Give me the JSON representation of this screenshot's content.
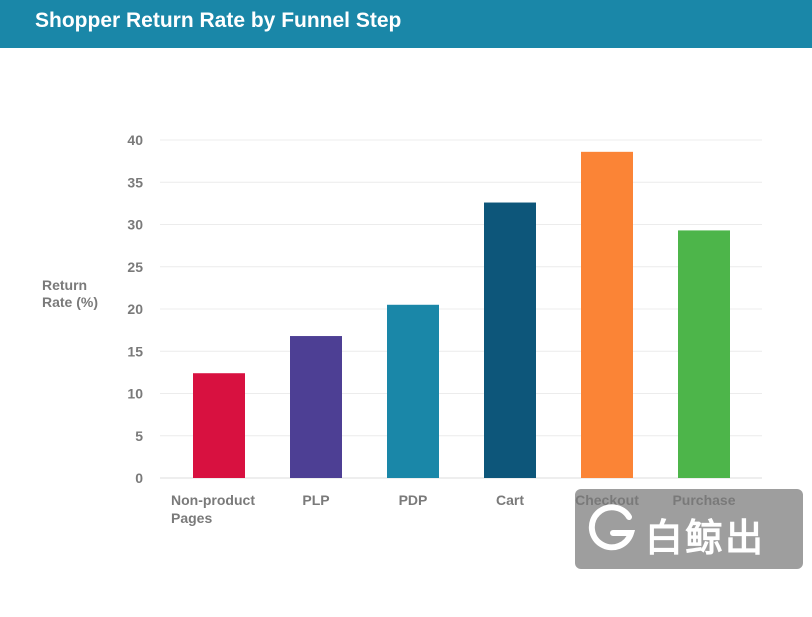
{
  "title": "Shopper Return Rate by Funnel Step",
  "chart_data": {
    "type": "bar",
    "title": "Shopper Return Rate by Funnel Step",
    "ylabel": [
      "Return",
      "Rate (%)"
    ],
    "xlabel": "",
    "ylim": [
      0,
      40
    ],
    "yticks": [
      0,
      5,
      10,
      15,
      20,
      25,
      30,
      35,
      40
    ],
    "grid": true,
    "categories": [
      [
        "Non-product",
        "Pages"
      ],
      [
        "PLP"
      ],
      [
        "PDP"
      ],
      [
        "Cart"
      ],
      [
        "Checkout"
      ],
      [
        "Purchase"
      ]
    ],
    "values": [
      12.4,
      16.8,
      20.5,
      32.6,
      38.6,
      29.3
    ],
    "colors": [
      "#d81140",
      "#4d3f94",
      "#1a87a8",
      "#0d567a",
      "#fb8436",
      "#4db54a"
    ]
  },
  "watermark": {
    "text": "白鲸出海",
    "icon": "g-logo-icon"
  }
}
